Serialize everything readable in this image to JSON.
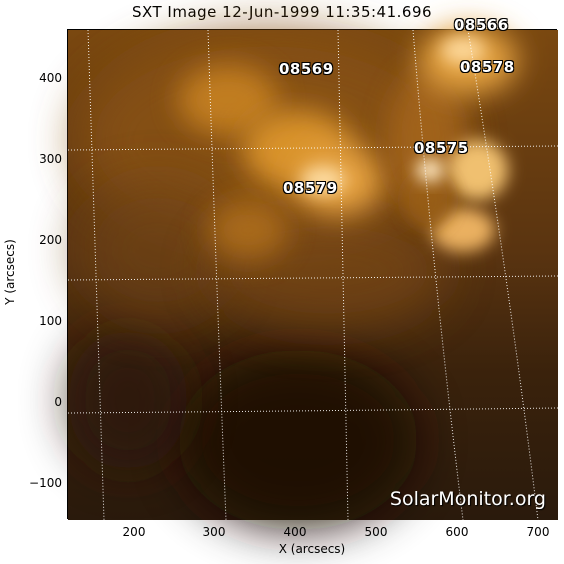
{
  "title": "SXT Image 12-Jun-1999 11:35:41.696",
  "x_axis": {
    "label": "X (arcsecs)",
    "ticks": [
      "200",
      "300",
      "400",
      "500",
      "600",
      "700"
    ]
  },
  "y_axis": {
    "label": "Y (arcsecs)",
    "ticks": [
      "400",
      "300",
      "200",
      "100",
      "0",
      "−100"
    ]
  },
  "regions": [
    "08569",
    "08578",
    "08575",
    "08579",
    "08566"
  ],
  "watermark": "SolarMonitor.org",
  "colors": {
    "dark": "#1e0f05",
    "mid": "#8a5212",
    "bright": "#e39a2a",
    "hot": "#ffe7bf"
  }
}
